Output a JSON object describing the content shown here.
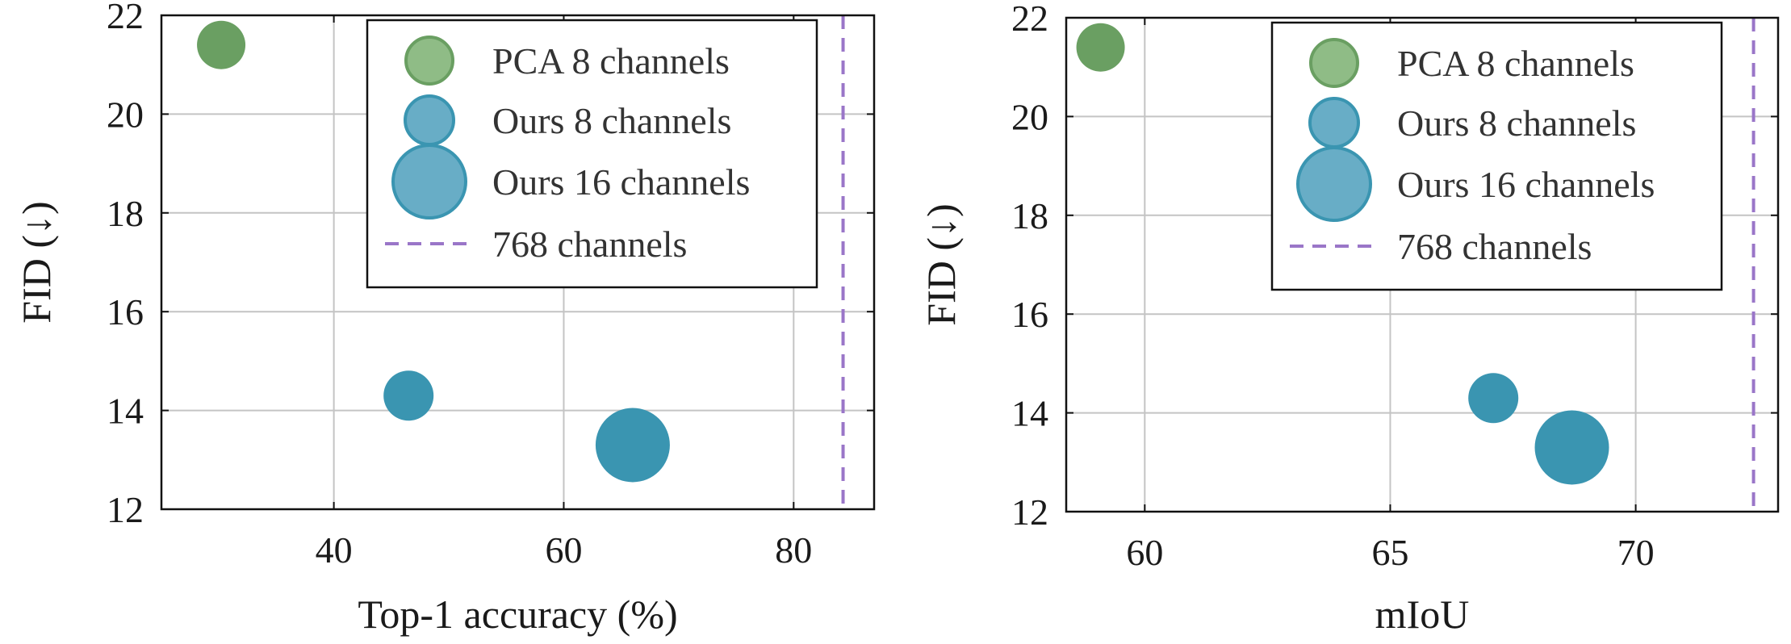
{
  "chart_data": [
    {
      "type": "scatter",
      "xlabel": "Top-1 accuracy (%)",
      "ylabel": "FID (↓)",
      "xlim": [
        25,
        87
      ],
      "ylim": [
        12,
        22
      ],
      "xticks": [
        40,
        60,
        80
      ],
      "yticks": [
        12,
        14,
        16,
        18,
        20,
        22
      ],
      "grid": true,
      "legend_position": "top-right",
      "series": [
        {
          "name": "PCA 8 channels",
          "color": "#6a9f62",
          "marker_size": "small",
          "points": [
            {
              "x": 30.2,
              "y": 21.4
            }
          ]
        },
        {
          "name": "Ours 8 channels",
          "color": "#3a95b1",
          "marker_size": "medium",
          "points": [
            {
              "x": 46.5,
              "y": 14.3
            }
          ]
        },
        {
          "name": "Ours 16 channels",
          "color": "#3a95b1",
          "marker_size": "large",
          "points": [
            {
              "x": 66.0,
              "y": 13.3
            }
          ]
        }
      ],
      "reference_line": {
        "name": "768 channels",
        "orientation": "vertical",
        "x": 84.3,
        "color": "#9a76c8",
        "style": "dashed"
      }
    },
    {
      "type": "scatter",
      "xlabel": "mIoU",
      "ylabel": "FID (↓)",
      "xlim": [
        58.4,
        72.9
      ],
      "ylim": [
        12,
        22
      ],
      "xticks": [
        60,
        65,
        70
      ],
      "yticks": [
        12,
        14,
        16,
        18,
        20,
        22
      ],
      "grid": true,
      "legend_position": "top-right",
      "series": [
        {
          "name": "PCA 8 channels",
          "color": "#6a9f62",
          "marker_size": "small",
          "points": [
            {
              "x": 59.1,
              "y": 21.4
            }
          ]
        },
        {
          "name": "Ours 8 channels",
          "color": "#3a95b1",
          "marker_size": "medium",
          "points": [
            {
              "x": 67.1,
              "y": 14.3
            }
          ]
        },
        {
          "name": "Ours 16 channels",
          "color": "#3a95b1",
          "marker_size": "large",
          "points": [
            {
              "x": 68.7,
              "y": 13.3
            }
          ]
        }
      ],
      "reference_line": {
        "name": "768 channels",
        "orientation": "vertical",
        "x": 72.4,
        "color": "#9a76c8",
        "style": "dashed"
      }
    }
  ]
}
